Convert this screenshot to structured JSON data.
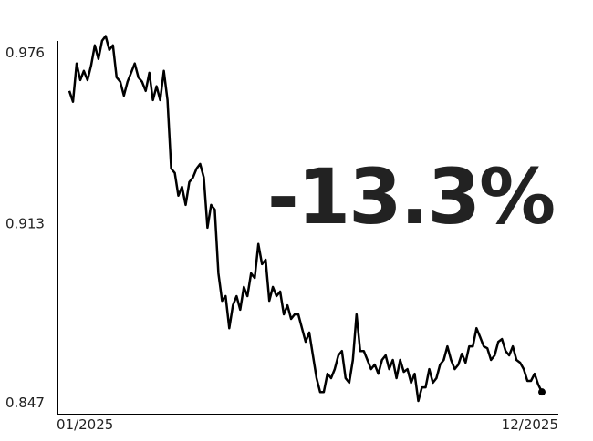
{
  "chart_data": {
    "type": "line",
    "annotation": "-13.3%",
    "annotation_color": "#f4475a",
    "color": "#000000",
    "x_tick_labels": [
      "01/2025",
      "12/2025"
    ],
    "ylim": [
      0.843,
      0.985
    ],
    "yticks": [
      0.847,
      0.913,
      0.976
    ],
    "values": [
      0.9619,
      0.9579,
      0.972,
      0.9659,
      0.9693,
      0.9659,
      0.9713,
      0.9787,
      0.9737,
      0.9804,
      0.9821,
      0.977,
      0.9787,
      0.9669,
      0.9653,
      0.9602,
      0.9653,
      0.9686,
      0.972,
      0.9669,
      0.9653,
      0.9619,
      0.9686,
      0.9585,
      0.9636,
      0.9585,
      0.9693,
      0.9585,
      0.9333,
      0.9317,
      0.9233,
      0.9266,
      0.9199,
      0.9283,
      0.93,
      0.9333,
      0.935,
      0.93,
      0.9115,
      0.9199,
      0.9182,
      0.8947,
      0.8846,
      0.8863,
      0.8745,
      0.8829,
      0.8863,
      0.8813,
      0.8897,
      0.8863,
      0.8947,
      0.893,
      0.9055,
      0.8981,
      0.8997,
      0.8846,
      0.8897,
      0.8863,
      0.888,
      0.8796,
      0.8829,
      0.8779,
      0.8796,
      0.8796,
      0.8745,
      0.8695,
      0.8729,
      0.8645,
      0.8561,
      0.851,
      0.851,
      0.8577,
      0.8561,
      0.8594,
      0.8645,
      0.8661,
      0.8561,
      0.8544,
      0.8628,
      0.8796,
      0.8661,
      0.8661,
      0.8628,
      0.8594,
      0.8611,
      0.8577,
      0.8628,
      0.8645,
      0.8594,
      0.8628,
      0.8561,
      0.8628,
      0.8584,
      0.8594,
      0.8544,
      0.8577,
      0.8477,
      0.8527,
      0.8527,
      0.8594,
      0.8544,
      0.8561,
      0.8611,
      0.8628,
      0.8678,
      0.8628,
      0.8594,
      0.8611,
      0.8651,
      0.8618,
      0.8678,
      0.8678,
      0.8745,
      0.8712,
      0.8678,
      0.8671,
      0.8628,
      0.8645,
      0.8695,
      0.8705,
      0.8661,
      0.8645,
      0.8678,
      0.8628,
      0.8618,
      0.8594,
      0.8551,
      0.8551,
      0.8577,
      0.8537,
      0.851
    ]
  }
}
